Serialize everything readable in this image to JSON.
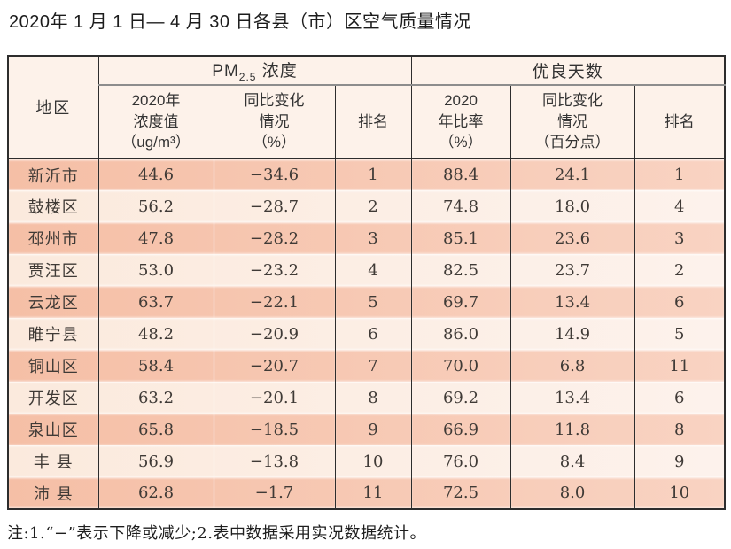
{
  "page": {
    "title": "2020年 1 月 1 日— 4 月 30 日各县（市）区空气质量情况",
    "footnote": "注:1.“−”表示下降或减少;2.表中数据采用实况数据统计。"
  },
  "colors": {
    "row_highlight": "#f7c6ae",
    "row_alt": "#fcefe7",
    "header_bg": "#fdf2ea",
    "grid_line": "#2d2d2d",
    "group_underline": "#8d8d8d"
  },
  "table": {
    "region_header": "地区",
    "pm_group": {
      "prefix": "PM",
      "sub": "2.5",
      "suffix": " 浓度"
    },
    "good_days_group": "优良天数",
    "subheaders": [
      "2020年\n浓度值\n（ug/m³）",
      "同比变化\n情况\n（%）",
      "排名",
      "2020\n年比率\n（%）",
      "同比变化\n情况\n（百分点）",
      "排名"
    ],
    "rows": [
      {
        "cells": [
          "新沂市",
          "44.6",
          "−34.6",
          "1",
          "88.4",
          "24.1",
          "1"
        ]
      },
      {
        "cells": [
          "鼓楼区",
          "56.2",
          "−28.7",
          "2",
          "74.8",
          "18.0",
          "4"
        ]
      },
      {
        "cells": [
          "邳州市",
          "47.8",
          "−28.2",
          "3",
          "85.1",
          "23.6",
          "3"
        ]
      },
      {
        "cells": [
          "贾汪区",
          "53.0",
          "−23.2",
          "4",
          "82.5",
          "23.7",
          "2"
        ]
      },
      {
        "cells": [
          "云龙区",
          "63.7",
          "−22.1",
          "5",
          "69.7",
          "13.4",
          "6"
        ]
      },
      {
        "cells": [
          "睢宁县",
          "48.2",
          "−20.9",
          "6",
          "86.0",
          "14.9",
          "5"
        ]
      },
      {
        "cells": [
          "铜山区",
          "58.4",
          "−20.7",
          "7",
          "70.0",
          "6.8",
          "11"
        ]
      },
      {
        "cells": [
          "开发区",
          "63.2",
          "−20.1",
          "8",
          "69.2",
          "13.4",
          "6"
        ]
      },
      {
        "cells": [
          "泉山区",
          "65.8",
          "−18.5",
          "9",
          "66.9",
          "11.8",
          "8"
        ]
      },
      {
        "cells": [
          "丰 县",
          "56.9",
          "−13.8",
          "10",
          "76.0",
          "8.4",
          "9"
        ]
      },
      {
        "cells": [
          "沛 县",
          "62.8",
          "−1.7",
          "11",
          "72.5",
          "8.0",
          "10"
        ]
      }
    ]
  }
}
